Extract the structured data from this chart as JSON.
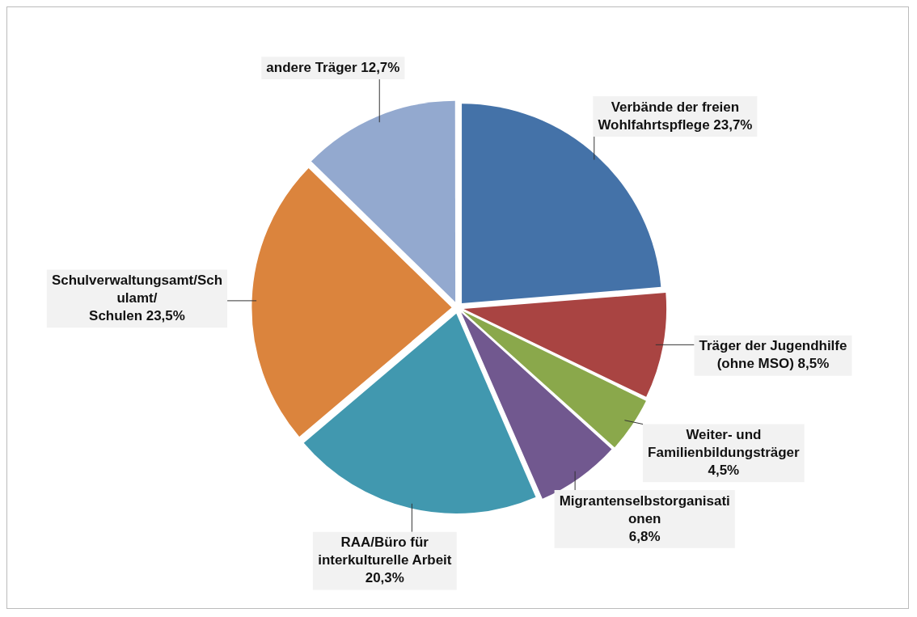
{
  "chart_data": {
    "type": "pie",
    "categories": [
      "Verbände der freien Wohlfahrtspflege",
      "Träger der Jugendhilfe (ohne MSO)",
      "Weiter- und Familienbildungsträger",
      "Migrantenselbstorganisationen",
      "RAA/Büro für interkulturelle Arbeit",
      "Schulverwaltungsamt/Schulamt/ Schulen",
      "andere Träger"
    ],
    "values": [
      23.7,
      8.5,
      4.5,
      6.8,
      20.3,
      23.5,
      12.7
    ],
    "value_labels": [
      "23,7%",
      "8,5%",
      "4,5%",
      "6,8%",
      "20,3%",
      "23,5%",
      "12,7%"
    ],
    "colors": [
      "#4472a8",
      "#a94442",
      "#8aa84b",
      "#71588f",
      "#4198af",
      "#db843d",
      "#93a9cf"
    ],
    "legend": false
  }
}
